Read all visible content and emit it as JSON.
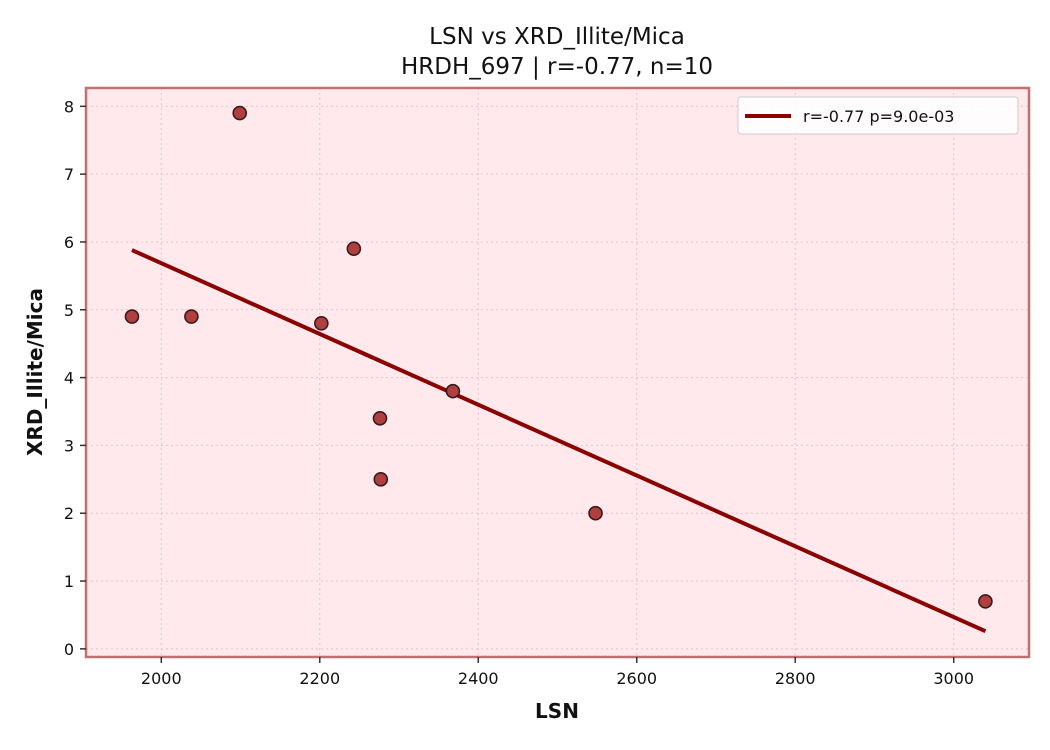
{
  "chart_data": {
    "type": "scatter",
    "title": "LSN vs XRD_Illite/Mica",
    "subtitle": "HRDH_697 | r=-0.77, n=10",
    "xlabel": "LSN",
    "ylabel": "XRD_Illite/Mica",
    "xlim": [
      1905,
      3095
    ],
    "ylim": [
      -0.12,
      8.27
    ],
    "xticks": [
      2000,
      2200,
      2400,
      2600,
      2800,
      3000
    ],
    "yticks": [
      0,
      1,
      2,
      3,
      4,
      5,
      6,
      7,
      8
    ],
    "grid": true,
    "legend_position": "top-right",
    "points": [
      {
        "x": 1963,
        "y": 4.9
      },
      {
        "x": 2038,
        "y": 4.9
      },
      {
        "x": 2099,
        "y": 7.9
      },
      {
        "x": 2202,
        "y": 4.8
      },
      {
        "x": 2243,
        "y": 5.9
      },
      {
        "x": 2276,
        "y": 3.4
      },
      {
        "x": 2277,
        "y": 2.5
      },
      {
        "x": 2368,
        "y": 3.8
      },
      {
        "x": 2548,
        "y": 2.0
      },
      {
        "x": 3040,
        "y": 0.7
      }
    ],
    "fit_line": {
      "label": "r=-0.77  p=9.0e-03",
      "start": {
        "x": 1963,
        "y": 5.88
      },
      "end": {
        "x": 3040,
        "y": 0.26
      }
    },
    "colors": {
      "plot_background": "#ffe9ed",
      "frame": "#c07070",
      "marker_fill": "#b04040",
      "marker_edge": "#3a1a1a",
      "fit_line": "#8b0000",
      "grid": "#e8c4c8"
    }
  }
}
